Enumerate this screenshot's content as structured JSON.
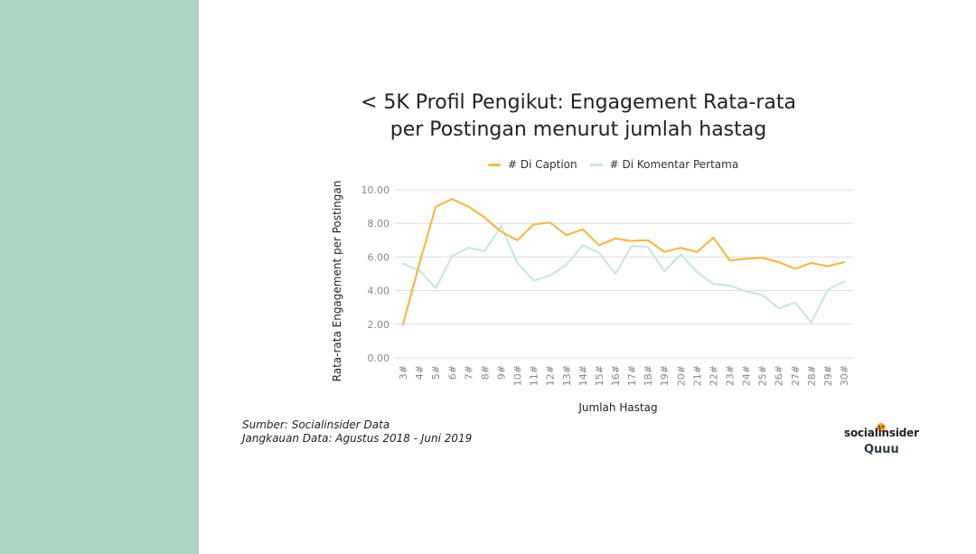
{
  "title": {
    "line1": "< 5K Profil Pengikut: Engagement Rata-rata",
    "line2": "per Postingan menurut jumlah hastag"
  },
  "legend": {
    "caption": "# Di Caption",
    "first_comment": "# Di Komentar Pertama"
  },
  "colors": {
    "caption": "#f6b84a",
    "first_comment": "#c8e8dc",
    "side_panel": "#add5c2",
    "grid": "#dddddd"
  },
  "source": {
    "line1": "Sumber: Socialinsider Data",
    "line2": "Jangkauan Data: Agustus 2018 - Juni 2019"
  },
  "logo": {
    "main": "socialinsider",
    "sub": "Quuu"
  },
  "chart_data": {
    "type": "line",
    "xlabel": "Jumlah Hastag",
    "ylabel": "Rata-rata Engagement  per Postingan",
    "ylim": [
      0,
      10
    ],
    "yticks": [
      "0.00",
      "2.00",
      "4.00",
      "6.00",
      "8.00",
      "10.00"
    ],
    "grid": true,
    "legend_position": "top",
    "categories": [
      "3#",
      "4#",
      "5#",
      "6#",
      "7#",
      "8#",
      "9#",
      "10#",
      "11#",
      "12#",
      "13#",
      "14#",
      "15#",
      "16#",
      "17#",
      "18#",
      "19#",
      "20#",
      "21#",
      "22#",
      "23#",
      "24#",
      "25#",
      "26#",
      "27#",
      "28#",
      "29#",
      "30#"
    ],
    "series": [
      {
        "name": "# Di Caption",
        "values": [
          2.0,
          5.6,
          9.0,
          9.45,
          9.0,
          8.35,
          7.5,
          7.0,
          7.95,
          8.05,
          7.3,
          7.65,
          6.7,
          7.1,
          6.95,
          7.0,
          6.3,
          6.55,
          6.3,
          7.15,
          5.8,
          5.9,
          5.95,
          5.7,
          5.3,
          5.65,
          5.45,
          5.7
        ]
      },
      {
        "name": "# Di Komentar Pertama",
        "values": [
          5.6,
          5.2,
          4.15,
          6.05,
          6.55,
          6.35,
          7.85,
          5.65,
          4.6,
          4.9,
          5.55,
          6.7,
          6.25,
          5.0,
          6.65,
          6.6,
          5.15,
          6.15,
          5.1,
          4.4,
          4.3,
          3.95,
          3.75,
          2.95,
          3.3,
          2.1,
          4.05,
          4.55
        ]
      }
    ]
  }
}
